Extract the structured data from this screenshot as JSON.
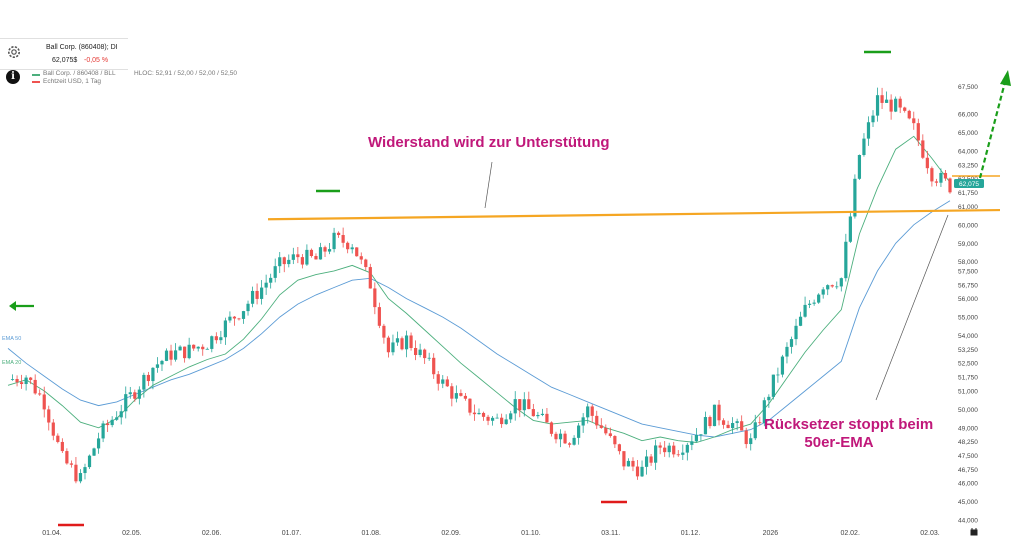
{
  "header": {
    "title": "Ball Corp. (860408); DI",
    "price": "62,075$",
    "change": "-0,05 %",
    "legend_line1": "Ball Corp. / 860408 / BLL",
    "legend_line2": "Echtzeit USD, 1 Tag",
    "ohlc": "HLOC: 52,91 / 52,00 / 52,00 / 52,50"
  },
  "annotations": {
    "resistance_text": "Widerstand wird zur Unterstütung",
    "pullback_line1": "Rücksetzer stoppt beim",
    "pullback_line2": "50er-EMA"
  },
  "icons": [
    "gear-icon",
    "info-icon",
    "calendar-icon",
    "arrow-left-icon"
  ],
  "colors": {
    "up": "#26a69a",
    "down": "#ef5350",
    "ema20": "#4caf7d",
    "ema50": "#5b9bd5",
    "level": "#f5a623",
    "annotation": "#c0187a",
    "marker_green": "#1a9e1a",
    "marker_red": "#e01b1b",
    "price_tag": "#26a69a"
  },
  "chart_data": {
    "type": "candlestick",
    "title": "",
    "x_tick_labels": [
      "01.04.",
      "02.05.",
      "02.06.",
      "01.07.",
      "01.08.",
      "02.09.",
      "01.10.",
      "03.11.",
      "01.12.",
      "2026",
      "02.02.",
      "02.03."
    ],
    "y_tick_labels": [
      "67,500",
      "66,000",
      "65,000",
      "64,000",
      "63,250",
      "62,500",
      "61,750",
      "61,000",
      "60,000",
      "59,000",
      "58,000",
      "57,500",
      "56,750",
      "56,000",
      "55,000",
      "54,000",
      "53,250",
      "52,500",
      "51,750",
      "51,000",
      "50,000",
      "49,000",
      "48,250",
      "47,500",
      "46,750",
      "46,000",
      "45,000",
      "44,000"
    ],
    "ylim": [
      44,
      68.5
    ],
    "current_price_label": "62,075",
    "resistance_support_level": [
      60.3,
      60.8
    ],
    "series": [
      {
        "name": "EMA 20",
        "values": [
          51.3,
          51.6,
          51.0,
          50.2,
          49.3,
          49.0,
          49.5,
          50.5,
          51.3,
          51.8,
          52.3,
          52.7,
          53.0,
          53.8,
          54.9,
          56.2,
          57.0,
          57.3,
          57.5,
          57.8,
          57.4,
          56.0,
          55.2,
          54.3,
          53.4,
          52.5,
          51.7,
          50.9,
          50.1,
          49.4,
          49.2,
          49.3,
          49.4,
          49.0,
          48.7,
          48.3,
          48.5,
          48.3,
          48.2,
          48.5,
          48.9,
          49.2,
          50.3,
          51.7,
          53.1,
          54.3,
          55.4,
          59.5,
          62.0,
          64.1,
          64.8,
          63.6,
          62.3
        ]
      },
      {
        "name": "EMA 50",
        "values": [
          53.3,
          52.5,
          51.8,
          51.1,
          50.5,
          50.2,
          50.4,
          50.8,
          51.2,
          51.6,
          51.9,
          52.3,
          52.7,
          53.3,
          54.1,
          55.0,
          55.7,
          56.2,
          56.6,
          57.0,
          57.1,
          56.6,
          56.0,
          55.5,
          55.0,
          54.4,
          53.7,
          53.0,
          52.4,
          51.8,
          51.2,
          50.8,
          50.4,
          50.0,
          49.6,
          49.2,
          49.0,
          48.8,
          48.6,
          48.5,
          48.7,
          48.9,
          49.4,
          50.2,
          51.0,
          51.8,
          52.6,
          55.5,
          57.5,
          59.0,
          60.0,
          60.7,
          61.3
        ]
      },
      {
        "name": "Ball Corp. / 860408 / BLL",
        "values": [
          51.6,
          51.8,
          50.4,
          47.3,
          46.2,
          48.5,
          49.8,
          51.0,
          52.3,
          53.0,
          53.2,
          53.6,
          54.6,
          55.5,
          56.6,
          57.8,
          58.3,
          58.1,
          59.2,
          59.0,
          56.8,
          53.1,
          53.8,
          52.7,
          51.4,
          50.4,
          49.7,
          49.4,
          50.4,
          49.8,
          48.9,
          48.4,
          50.0,
          48.7,
          47.1,
          46.7,
          48.0,
          47.9,
          48.7,
          49.8,
          49.2,
          48.2,
          50.9,
          53.2,
          55.4,
          56.8,
          57.1,
          63.8,
          66.8,
          66.4,
          65.2,
          62.8,
          62.1
        ]
      }
    ],
    "annotations": [
      "Widerstand wird zur Unterstütung",
      "Rücksetzer stoppt beim",
      "50er-EMA"
    ]
  }
}
